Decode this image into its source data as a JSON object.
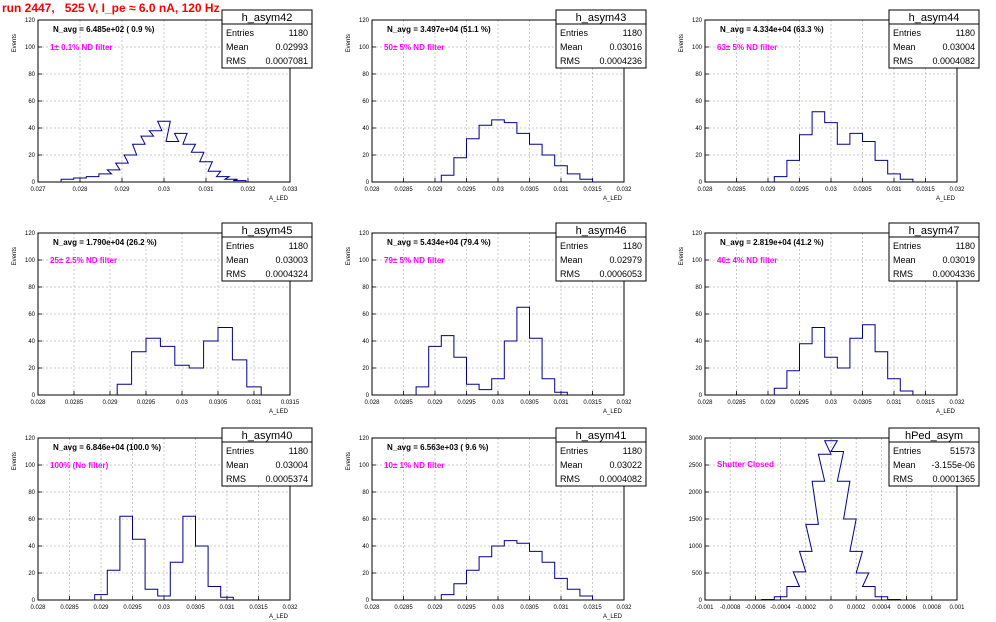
{
  "title": "run 2447,   525 V, I_pe ≈ 6.0 nA, 120 Hz",
  "colors": {
    "title": "#ff0000",
    "histogram": "#00008b",
    "grid": "#bbbbbb",
    "annotation": "#ff00ff"
  },
  "stats_labels": {
    "entries": "Entries",
    "mean": "Mean",
    "rms": "RMS"
  },
  "chart_data": [
    {
      "type": "histogram",
      "name": "h_asym42",
      "ylabel": "Events",
      "xlabel": "A_LED",
      "stats": {
        "entries": "1180",
        "mean": "0.02993",
        "rms": "0.0007081"
      },
      "navg": "N_avg = 6.485e+02 ( 0.9 %)",
      "note": "1± 0.1% ND filter",
      "xlim": [
        0.027,
        0.033
      ],
      "ylim": [
        0,
        120
      ],
      "grid": true,
      "xticks": [
        "0.027",
        "0.028",
        "0.029",
        "0.03",
        "0.031",
        "0.032",
        "0.033"
      ],
      "yticks": [
        "0",
        "20",
        "40",
        "60",
        "80",
        "100",
        "120"
      ],
      "x": [
        0.0277,
        0.028,
        0.0283,
        0.0286,
        0.0288,
        0.029,
        0.0292,
        0.0294,
        0.0296,
        0.0298,
        0.03,
        0.0302,
        0.0304,
        0.0306,
        0.0308,
        0.031,
        0.0312,
        0.0314,
        0.0316,
        0.0318
      ],
      "values": [
        2,
        3,
        4,
        6,
        9,
        14,
        20,
        28,
        34,
        38,
        45,
        30,
        36,
        28,
        22,
        15,
        8,
        4,
        2,
        1
      ]
    },
    {
      "type": "histogram",
      "name": "h_asym43",
      "ylabel": "Events",
      "xlabel": "A_LED",
      "stats": {
        "entries": "1180",
        "mean": "0.03016",
        "rms": "0.0004236"
      },
      "navg": "N_avg = 3.497e+04 (51.1 %)",
      "note": "50± 5% ND filter",
      "xlim": [
        0.028,
        0.032
      ],
      "ylim": [
        0,
        120
      ],
      "grid": true,
      "xticks": [
        "0.028",
        "0.0285",
        "0.029",
        "0.0295",
        "0.03",
        "0.0305",
        "0.031",
        "0.0315",
        "0.032"
      ],
      "yticks": [
        "0",
        "20",
        "40",
        "60",
        "80",
        "100",
        "120"
      ],
      "x": [
        0.0292,
        0.0294,
        0.0296,
        0.0298,
        0.03,
        0.0302,
        0.0304,
        0.0306,
        0.0308,
        0.031,
        0.0312,
        0.0314
      ],
      "values": [
        5,
        18,
        32,
        42,
        46,
        44,
        36,
        28,
        20,
        12,
        6,
        2
      ]
    },
    {
      "type": "histogram",
      "name": "h_asym44",
      "ylabel": "Events",
      "xlabel": "A_LED",
      "stats": {
        "entries": "1180",
        "mean": "0.03004",
        "rms": "0.0004082"
      },
      "navg": "N_avg = 4.334e+04 (63.3 %)",
      "note": "63± 5% ND filter",
      "xlim": [
        0.028,
        0.032
      ],
      "ylim": [
        0,
        120
      ],
      "grid": true,
      "xticks": [
        "0.028",
        "0.0285",
        "0.029",
        "0.0295",
        "0.03",
        "0.0305",
        "0.031",
        "0.0315",
        "0.032"
      ],
      "yticks": [
        "0",
        "20",
        "40",
        "60",
        "80",
        "100",
        "120"
      ],
      "x": [
        0.0292,
        0.0294,
        0.0296,
        0.0298,
        0.03,
        0.0302,
        0.0304,
        0.0306,
        0.0308,
        0.031,
        0.0312
      ],
      "values": [
        4,
        16,
        35,
        52,
        44,
        28,
        36,
        30,
        16,
        6,
        2
      ]
    },
    {
      "type": "histogram",
      "name": "h_asym45",
      "ylabel": "Events",
      "xlabel": "A_LED",
      "stats": {
        "entries": "1180",
        "mean": "0.03003",
        "rms": "0.0004324"
      },
      "navg": "N_avg = 1.790e+04 (26.2 %)",
      "note": "25± 2.5% ND filter",
      "xlim": [
        0.028,
        0.0315
      ],
      "ylim": [
        0,
        120
      ],
      "grid": true,
      "xticks": [
        "0.028",
        "0.0285",
        "0.029",
        "0.0295",
        "0.03",
        "0.0305",
        "0.031",
        "0.0315"
      ],
      "yticks": [
        "0",
        "20",
        "40",
        "60",
        "80",
        "100",
        "120"
      ],
      "x": [
        0.0292,
        0.0294,
        0.0296,
        0.0298,
        0.03,
        0.0302,
        0.0304,
        0.0306,
        0.0308,
        0.031
      ],
      "values": [
        8,
        32,
        42,
        36,
        22,
        20,
        40,
        50,
        26,
        6
      ]
    },
    {
      "type": "histogram",
      "name": "h_asym46",
      "ylabel": "Events",
      "xlabel": "A_LED",
      "stats": {
        "entries": "1180",
        "mean": "0.02979",
        "rms": "0.0006053"
      },
      "navg": "N_avg = 5.434e+04 (79.4 %)",
      "note": "79± 5% ND filter",
      "xlim": [
        0.028,
        0.032
      ],
      "ylim": [
        0,
        120
      ],
      "grid": true,
      "xticks": [
        "0.028",
        "0.0285",
        "0.029",
        "0.0295",
        "0.03",
        "0.0305",
        "0.031",
        "0.0315",
        "0.032"
      ],
      "yticks": [
        "0",
        "20",
        "40",
        "60",
        "80",
        "100",
        "120"
      ],
      "x": [
        0.0288,
        0.029,
        0.0292,
        0.0294,
        0.0296,
        0.0298,
        0.03,
        0.0302,
        0.0304,
        0.0306,
        0.0308,
        0.031
      ],
      "values": [
        6,
        36,
        44,
        28,
        8,
        4,
        12,
        40,
        65,
        42,
        12,
        2
      ]
    },
    {
      "type": "histogram",
      "name": "h_asym47",
      "ylabel": "Events",
      "xlabel": "A_LED",
      "stats": {
        "entries": "1180",
        "mean": "0.03019",
        "rms": "0.0004336"
      },
      "navg": "N_avg = 2.819e+04 (41.2 %)",
      "note": "40± 4% ND filter",
      "xlim": [
        0.028,
        0.032
      ],
      "ylim": [
        0,
        120
      ],
      "grid": true,
      "xticks": [
        "0.028",
        "0.0285",
        "0.029",
        "0.0295",
        "0.03",
        "0.0305",
        "0.031",
        "0.0315",
        "0.032"
      ],
      "yticks": [
        "0",
        "20",
        "40",
        "60",
        "80",
        "100",
        "120"
      ],
      "x": [
        0.0292,
        0.0294,
        0.0296,
        0.0298,
        0.03,
        0.0302,
        0.0304,
        0.0306,
        0.0308,
        0.031,
        0.0312
      ],
      "values": [
        5,
        18,
        38,
        50,
        28,
        20,
        42,
        52,
        32,
        12,
        3
      ]
    },
    {
      "type": "histogram",
      "name": "h_asym40",
      "ylabel": "Events",
      "xlabel": "A_LED",
      "stats": {
        "entries": "1180",
        "mean": "0.03004",
        "rms": "0.0005374"
      },
      "navg": "N_avg = 6.846e+04 (100.0 %)",
      "note": "100% (No filter)",
      "xlim": [
        0.028,
        0.032
      ],
      "ylim": [
        0,
        120
      ],
      "grid": true,
      "xticks": [
        "0.028",
        "0.0285",
        "0.029",
        "0.0295",
        "0.03",
        "0.0305",
        "0.031",
        "0.0315",
        "0.032"
      ],
      "yticks": [
        "0",
        "20",
        "40",
        "60",
        "80",
        "100",
        "120"
      ],
      "x": [
        0.029,
        0.0292,
        0.0294,
        0.0296,
        0.0298,
        0.03,
        0.0302,
        0.0304,
        0.0306,
        0.0308,
        0.031
      ],
      "values": [
        4,
        22,
        62,
        45,
        8,
        3,
        28,
        62,
        40,
        10,
        2
      ]
    },
    {
      "type": "histogram",
      "name": "h_asym41",
      "ylabel": "Events",
      "xlabel": "A_LED",
      "stats": {
        "entries": "1180",
        "mean": "0.03022",
        "rms": "0.0004082"
      },
      "navg": "N_avg = 6.563e+03 ( 9.6 %)",
      "note": "10± 1% ND filter",
      "xlim": [
        0.028,
        0.032
      ],
      "ylim": [
        0,
        120
      ],
      "grid": true,
      "xticks": [
        "0.028",
        "0.0285",
        "0.029",
        "0.0295",
        "0.03",
        "0.0305",
        "0.031",
        "0.0315",
        "0.032"
      ],
      "yticks": [
        "0",
        "20",
        "40",
        "60",
        "80",
        "100",
        "120"
      ],
      "x": [
        0.0292,
        0.0294,
        0.0296,
        0.0298,
        0.03,
        0.0302,
        0.0304,
        0.0306,
        0.0308,
        0.031,
        0.0312,
        0.0314
      ],
      "values": [
        4,
        12,
        22,
        32,
        40,
        44,
        42,
        36,
        28,
        16,
        8,
        3
      ]
    },
    {
      "type": "histogram",
      "name": "hPed_asym",
      "ylabel": "",
      "xlabel": "",
      "stats": {
        "entries": "51573",
        "mean": "-3.155e-06",
        "rms": "0.0001365"
      },
      "navg": "",
      "note": "Shutter Closed",
      "xlim": [
        -0.001,
        0.001
      ],
      "ylim": [
        0,
        3000
      ],
      "grid": true,
      "xticks": [
        "-0.001",
        "-0.0008",
        "-0.0006",
        "-0.0004",
        "-0.0002",
        "0",
        "0.0002",
        "0.0004",
        "0.0006",
        "0.0008",
        "0.001"
      ],
      "yticks": [
        "0",
        "500",
        "1000",
        "1500",
        "2000",
        "2500",
        "3000"
      ],
      "x": [
        -0.0005,
        -0.0004,
        -0.0003,
        -0.00025,
        -0.0002,
        -0.00015,
        -0.0001,
        -5e-05,
        0,
        5e-05,
        0.0001,
        0.00015,
        0.0002,
        0.00025,
        0.0003,
        0.0004,
        0.0005
      ],
      "values": [
        10,
        60,
        250,
        520,
        900,
        1400,
        2200,
        2700,
        2950,
        2750,
        2200,
        1500,
        900,
        500,
        250,
        60,
        10
      ]
    }
  ]
}
